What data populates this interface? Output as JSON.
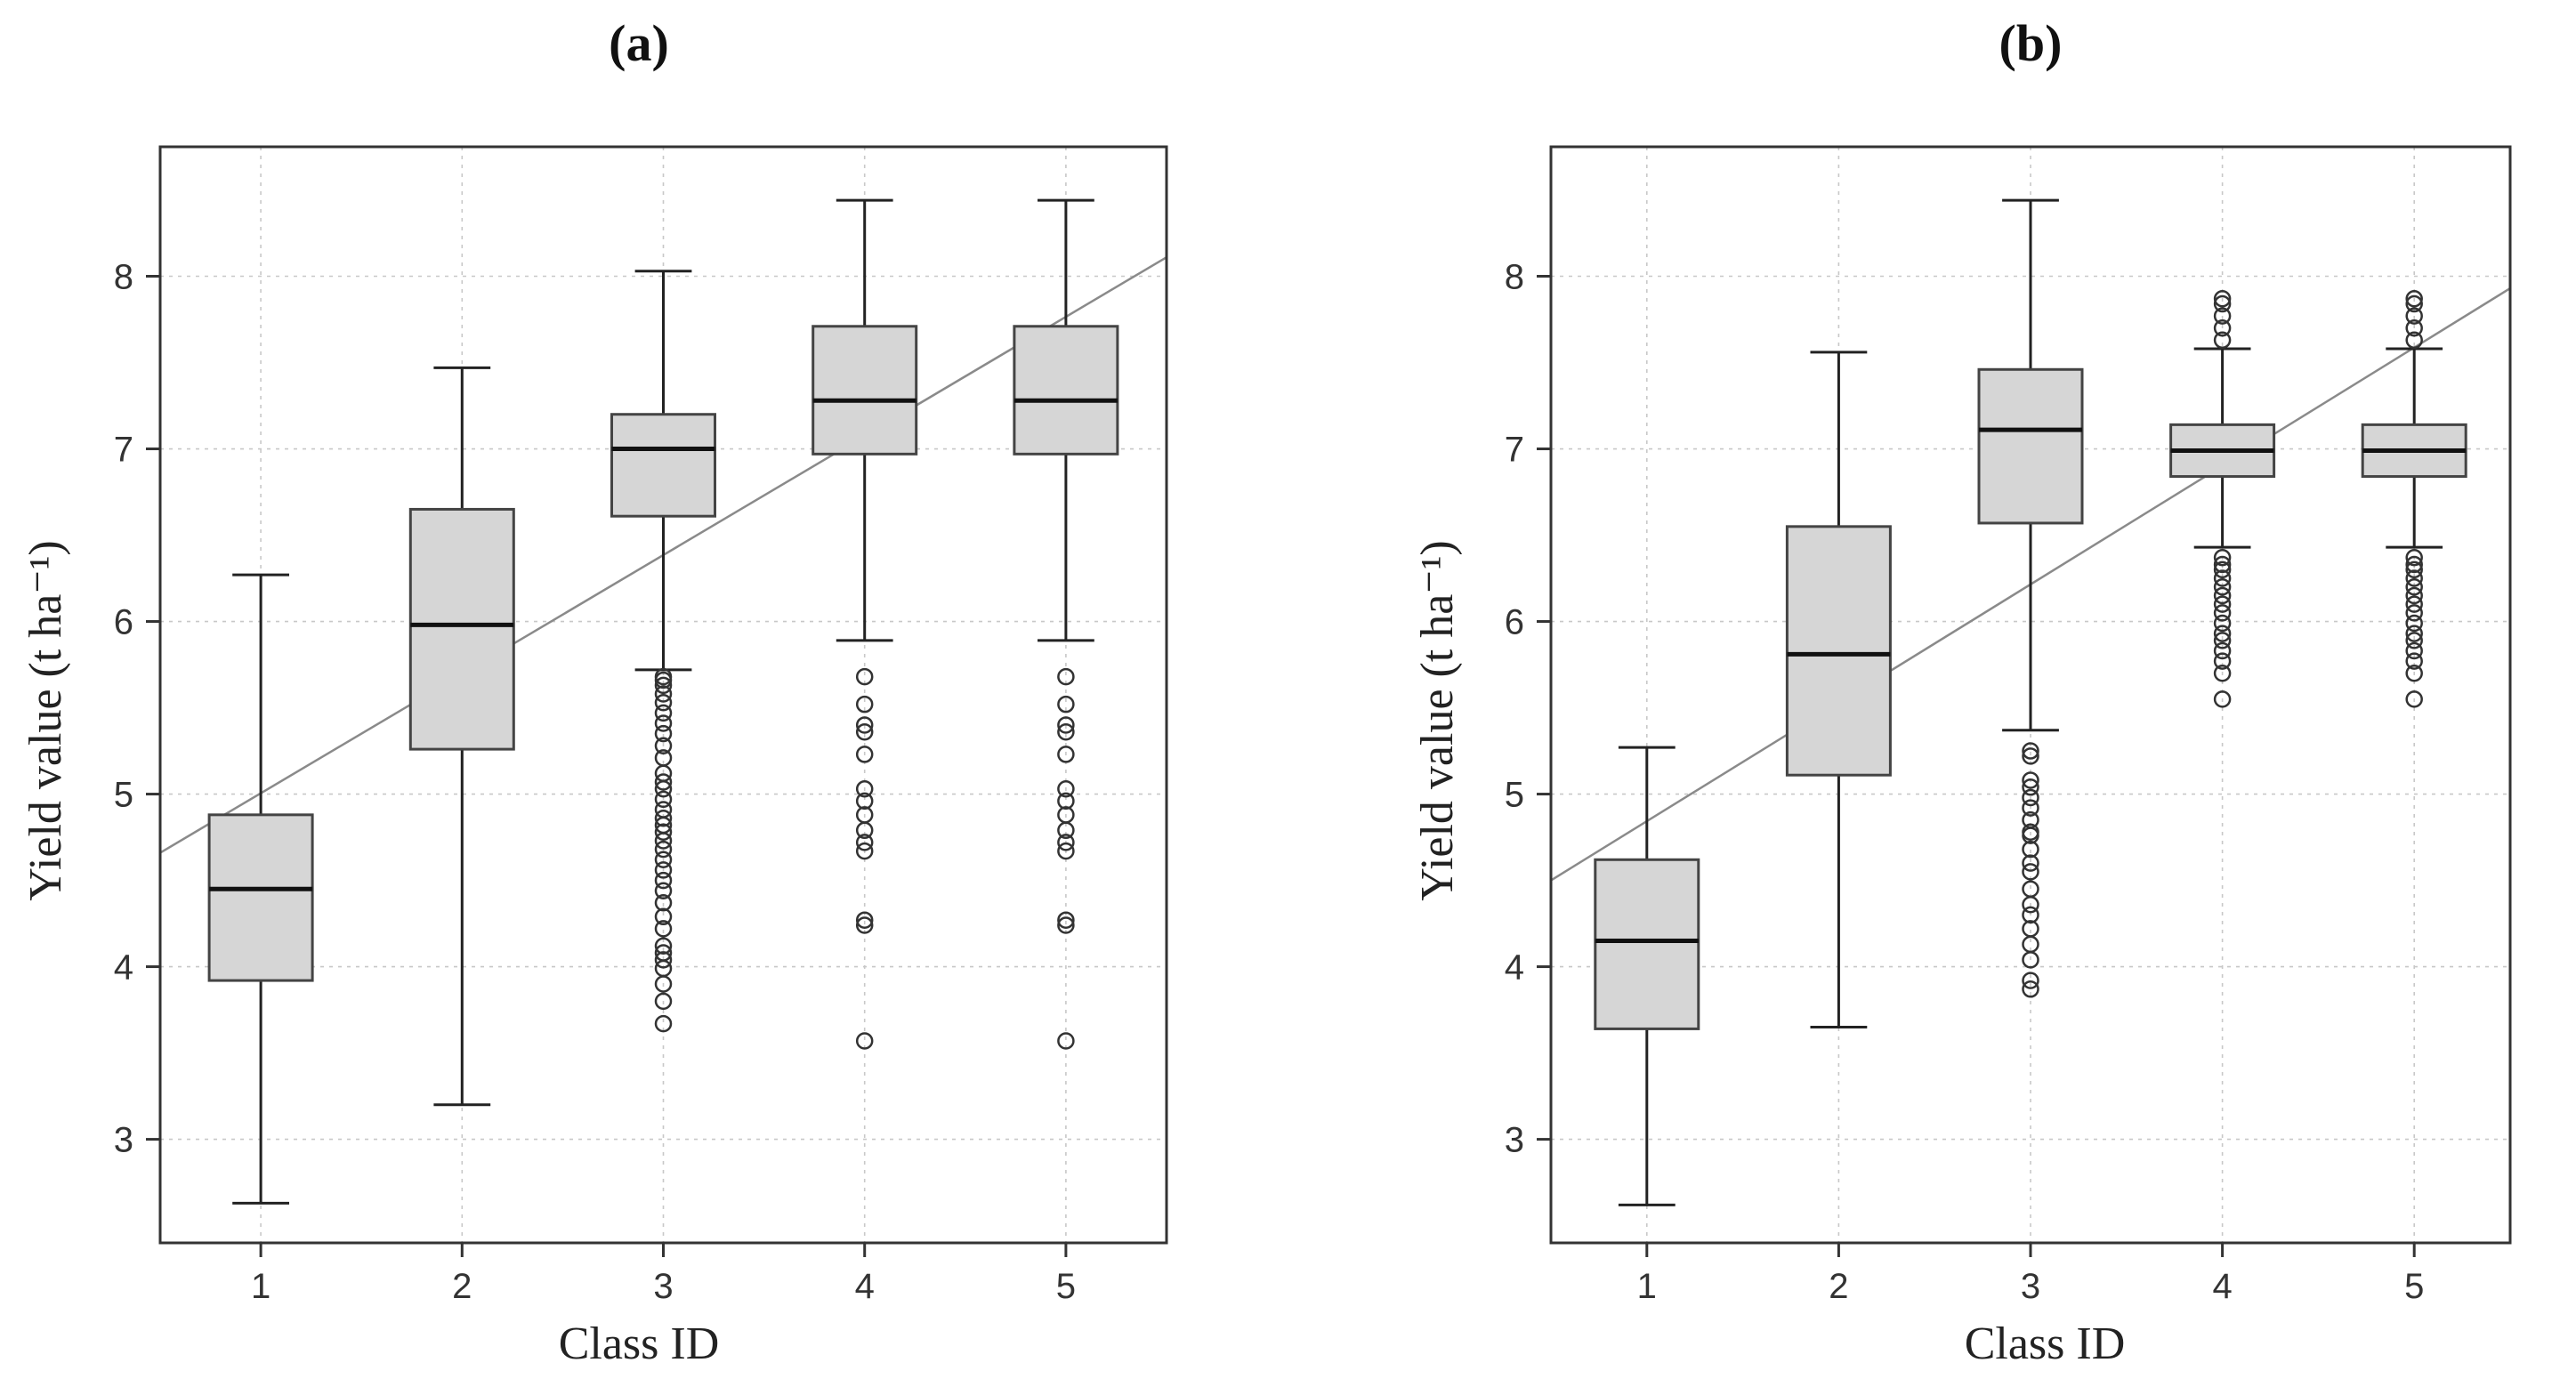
{
  "chart_data": [
    {
      "type": "box",
      "title": "(a)",
      "xlabel": "Class ID",
      "ylabel": "Yield value (t ha⁻¹)",
      "ylim": [
        2.4,
        8.75
      ],
      "xlim": [
        0.5,
        5.5
      ],
      "categories": [
        "1",
        "2",
        "3",
        "4",
        "5"
      ],
      "yticks": [
        "3",
        "4",
        "5",
        "6",
        "7",
        "8"
      ],
      "boxes": [
        {
          "category": "1",
          "whisker_low": 2.63,
          "q1": 3.92,
          "median": 4.45,
          "q3": 4.88,
          "whisker_high": 6.27,
          "outliers": []
        },
        {
          "category": "2",
          "whisker_low": 3.2,
          "q1": 5.26,
          "median": 5.98,
          "q3": 6.65,
          "whisker_high": 7.47,
          "outliers": []
        },
        {
          "category": "3",
          "whisker_low": 5.72,
          "q1": 6.61,
          "median": 7.0,
          "q3": 7.2,
          "whisker_high": 8.03,
          "outliers": [
            5.68,
            5.66,
            5.63,
            5.58,
            5.53,
            5.47,
            5.41,
            5.35,
            5.28,
            5.21,
            5.12,
            5.07,
            5.03,
            4.97,
            4.91,
            4.86,
            4.82,
            4.78,
            4.73,
            4.68,
            4.62,
            4.56,
            4.5,
            4.44,
            4.37,
            4.29,
            4.22,
            4.12,
            4.08,
            4.04,
            3.99,
            3.9,
            3.8,
            3.67
          ]
        },
        {
          "category": "4",
          "whisker_low": 5.89,
          "q1": 6.97,
          "median": 7.28,
          "q3": 7.71,
          "whisker_high": 8.44,
          "outliers": [
            5.68,
            5.52,
            5.4,
            5.36,
            5.23,
            5.03,
            4.96,
            4.88,
            4.79,
            4.72,
            4.67,
            4.27,
            4.24,
            3.57
          ]
        },
        {
          "category": "5",
          "whisker_low": 5.89,
          "q1": 6.97,
          "median": 7.28,
          "q3": 7.71,
          "whisker_high": 8.44,
          "outliers": [
            5.68,
            5.52,
            5.4,
            5.36,
            5.23,
            5.03,
            4.96,
            4.88,
            4.79,
            4.72,
            4.67,
            4.27,
            4.24,
            3.57
          ]
        }
      ],
      "trend_line": {
        "x": [
          0.5,
          5.5
        ],
        "y": [
          4.66,
          8.11
        ]
      }
    },
    {
      "type": "box",
      "title": "(b)",
      "xlabel": "Class ID",
      "ylabel": "Yield value (t ha⁻¹)",
      "ylim": [
        2.4,
        8.75
      ],
      "xlim": [
        0.5,
        5.5
      ],
      "categories": [
        "1",
        "2",
        "3",
        "4",
        "5"
      ],
      "yticks": [
        "3",
        "4",
        "5",
        "6",
        "7",
        "8"
      ],
      "boxes": [
        {
          "category": "1",
          "whisker_low": 2.62,
          "q1": 3.64,
          "median": 4.15,
          "q3": 4.62,
          "whisker_high": 5.27,
          "outliers": []
        },
        {
          "category": "2",
          "whisker_low": 3.65,
          "q1": 5.11,
          "median": 5.81,
          "q3": 6.55,
          "whisker_high": 7.56,
          "outliers": []
        },
        {
          "category": "3",
          "whisker_low": 5.37,
          "q1": 6.57,
          "median": 7.11,
          "q3": 7.46,
          "whisker_high": 8.44,
          "outliers": [
            5.25,
            5.22,
            5.08,
            5.04,
            4.98,
            4.92,
            4.85,
            4.78,
            4.76,
            4.68,
            4.6,
            4.55,
            4.45,
            4.36,
            4.3,
            4.22,
            4.13,
            4.04,
            3.92,
            3.87
          ]
        },
        {
          "category": "4",
          "whisker_low": 6.43,
          "q1": 6.84,
          "median": 6.99,
          "q3": 7.14,
          "whisker_high": 7.58,
          "outliers": [
            7.87,
            7.84,
            7.77,
            7.7,
            7.63,
            6.37,
            6.33,
            6.3,
            6.25,
            6.2,
            6.15,
            6.1,
            6.05,
            5.99,
            5.93,
            5.89,
            5.83,
            5.77,
            5.7,
            5.55
          ]
        },
        {
          "category": "5",
          "whisker_low": 6.43,
          "q1": 6.84,
          "median": 6.99,
          "q3": 7.14,
          "whisker_high": 7.58,
          "outliers": [
            7.87,
            7.84,
            7.77,
            7.7,
            7.63,
            6.37,
            6.33,
            6.3,
            6.25,
            6.2,
            6.15,
            6.1,
            6.05,
            5.99,
            5.93,
            5.89,
            5.83,
            5.77,
            5.7,
            5.55
          ]
        }
      ],
      "trend_line": {
        "x": [
          0.5,
          5.5
        ],
        "y": [
          4.5,
          7.93
        ]
      }
    }
  ]
}
